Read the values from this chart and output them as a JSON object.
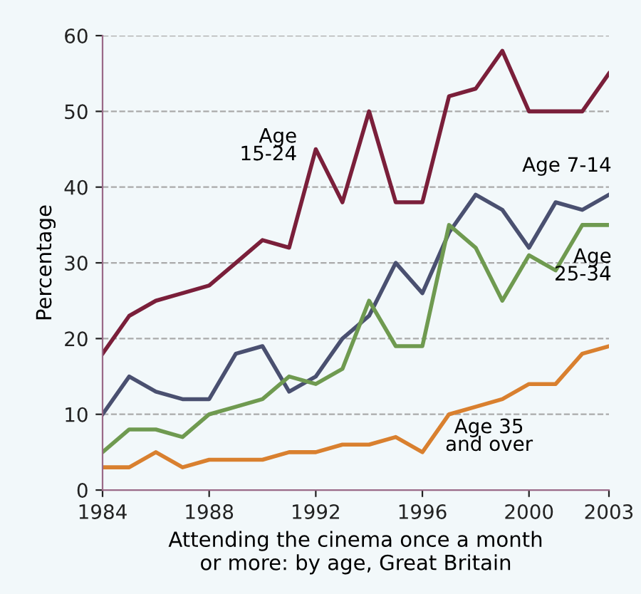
{
  "chart_data": {
    "type": "line",
    "xlabel": "Attending the cinema once a month\nor more: by age, Great Britain",
    "ylabel": "Percentage",
    "x": [
      1984,
      1985,
      1986,
      1987,
      1988,
      1989,
      1990,
      1991,
      1992,
      1993,
      1994,
      1995,
      1996,
      1997,
      1998,
      1999,
      2000,
      2001,
      2002,
      2003
    ],
    "series": [
      {
        "name": "Age\n15-24",
        "color": "#7a1f3a",
        "values": [
          18,
          23,
          25,
          26,
          27,
          30,
          33,
          32,
          45,
          38,
          50,
          38,
          38,
          52,
          53,
          58,
          50,
          50,
          50,
          55
        ]
      },
      {
        "name": "Age 7-14",
        "color": "#4a5070",
        "values": [
          10,
          15,
          13,
          12,
          12,
          18,
          19,
          13,
          15,
          20,
          23,
          30,
          26,
          34,
          39,
          37,
          32,
          38,
          37,
          39
        ]
      },
      {
        "name": "Age\n25-34",
        "color": "#6f9a50",
        "values": [
          5,
          8,
          8,
          7,
          10,
          11,
          12,
          15,
          14,
          16,
          25,
          19,
          19,
          35,
          32,
          25,
          31,
          29,
          35,
          35
        ]
      },
      {
        "name": "Age 35\nand over",
        "color": "#d9802f",
        "values": [
          3,
          3,
          5,
          3,
          4,
          4,
          4,
          5,
          5,
          6,
          6,
          7,
          5,
          10,
          11,
          12,
          14,
          14,
          18,
          19
        ]
      }
    ],
    "xlim": [
      1984,
      2003
    ],
    "xticks": [
      1984,
      1988,
      1992,
      1996,
      2000,
      2003
    ],
    "ylim": [
      0,
      60
    ],
    "yticks": [
      0,
      10,
      20,
      30,
      40,
      50,
      60
    ],
    "grid": "y",
    "line_style": "solid",
    "marker": "none",
    "legend": false
  }
}
